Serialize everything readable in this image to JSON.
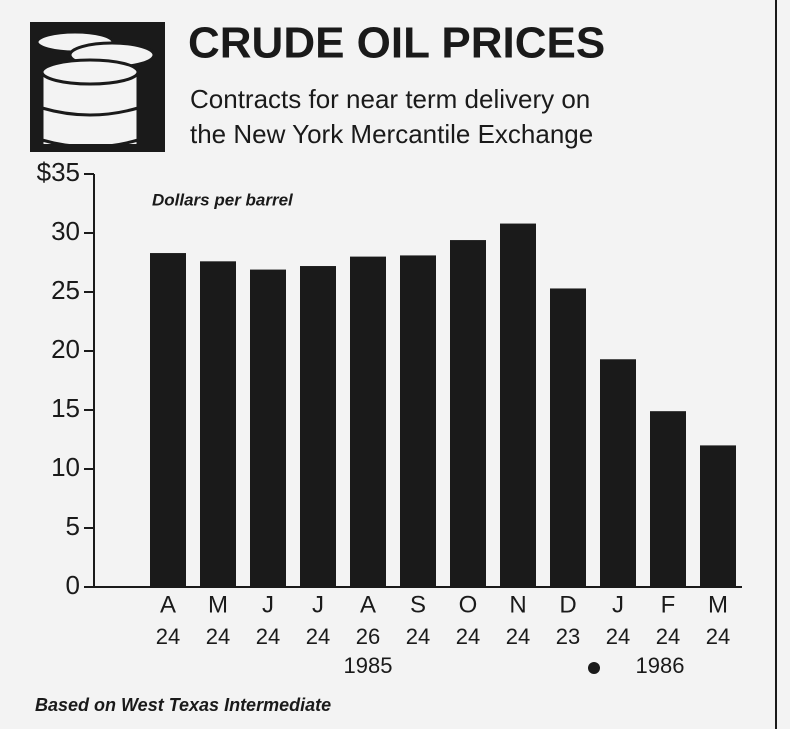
{
  "chart_data": {
    "type": "bar",
    "title": "CRUDE OIL PRICES",
    "subtitle_lines": [
      "Contracts for near term delivery on",
      "the New York Mercantile Exchange"
    ],
    "y_label": "Dollars per barrel",
    "categories": [
      "A",
      "M",
      "J",
      "J",
      "A",
      "S",
      "O",
      "N",
      "D",
      "J",
      "F",
      "M"
    ],
    "day_labels": [
      "24",
      "24",
      "24",
      "24",
      "26",
      "24",
      "24",
      "24",
      "23",
      "24",
      "24",
      "24"
    ],
    "year_labels": [
      "1985",
      "1986"
    ],
    "values": [
      28.3,
      27.6,
      26.9,
      27.2,
      28.0,
      28.1,
      29.4,
      30.8,
      25.3,
      19.3,
      14.9,
      12.0
    ],
    "color": "#1a1a1a",
    "ylim": [
      0,
      35
    ],
    "yticks": [
      0,
      5,
      10,
      15,
      20,
      25,
      30,
      {
        "value": 35,
        "label": "$35"
      }
    ],
    "grid": false,
    "note": "Based on West Texas Intermediate"
  }
}
